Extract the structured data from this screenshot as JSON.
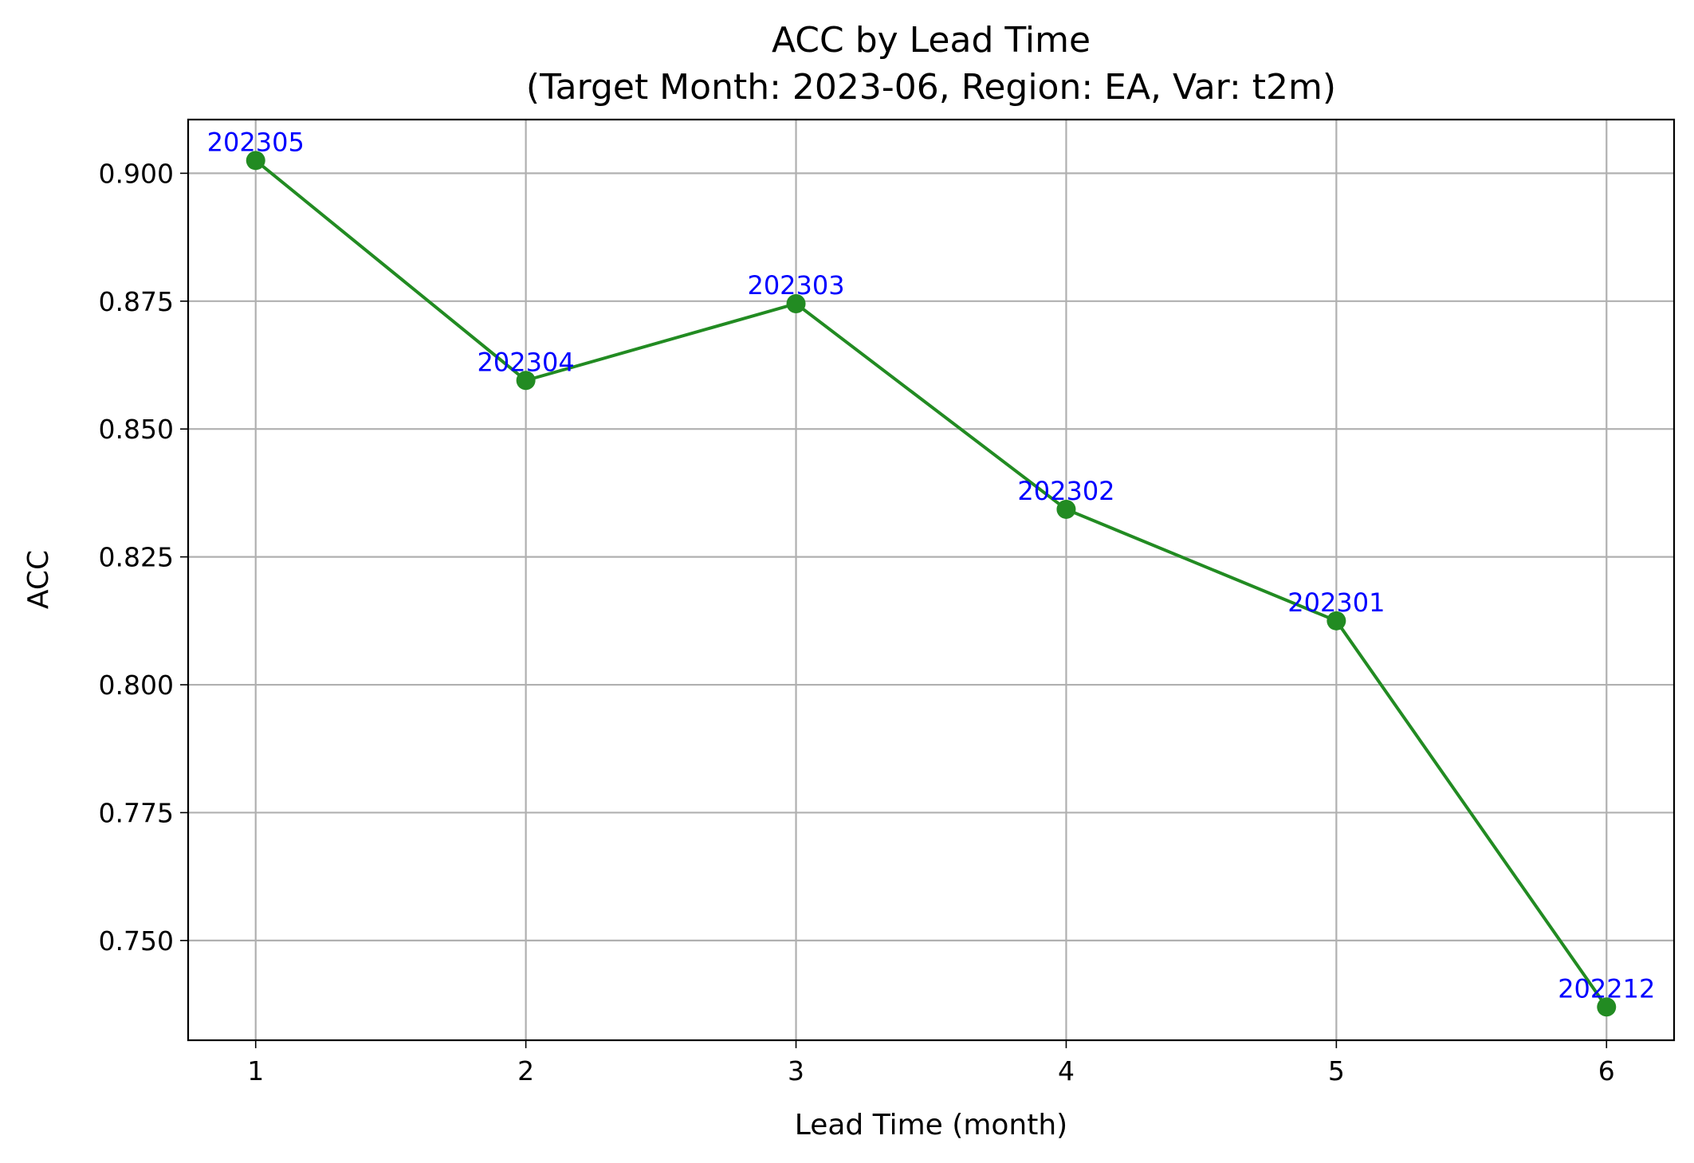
{
  "chart_data": {
    "type": "line",
    "title": "ACC by Lead Time",
    "subtitle": "(Target Month: 2023-06, Region: EA, Var: t2m)",
    "xlabel": "Lead Time (month)",
    "ylabel": "ACC",
    "x": [
      1,
      2,
      3,
      4,
      5,
      6
    ],
    "series": [
      {
        "values": [
          0.9025,
          0.8595,
          0.8745,
          0.8343,
          0.8125,
          0.737
        ],
        "point_labels": [
          "202305",
          "202304",
          "202303",
          "202302",
          "202301",
          "202212"
        ]
      }
    ],
    "xlim": [
      0.75,
      6.25
    ],
    "ylim": [
      0.7305,
      0.9105
    ],
    "xticks": [
      "1",
      "2",
      "3",
      "4",
      "5",
      "6"
    ],
    "yticks": [
      "0.750",
      "0.775",
      "0.800",
      "0.825",
      "0.850",
      "0.875",
      "0.900"
    ],
    "grid": true,
    "colors": {
      "line": "#228b22",
      "marker": "#228b22",
      "point_label": "#0000ff"
    }
  }
}
